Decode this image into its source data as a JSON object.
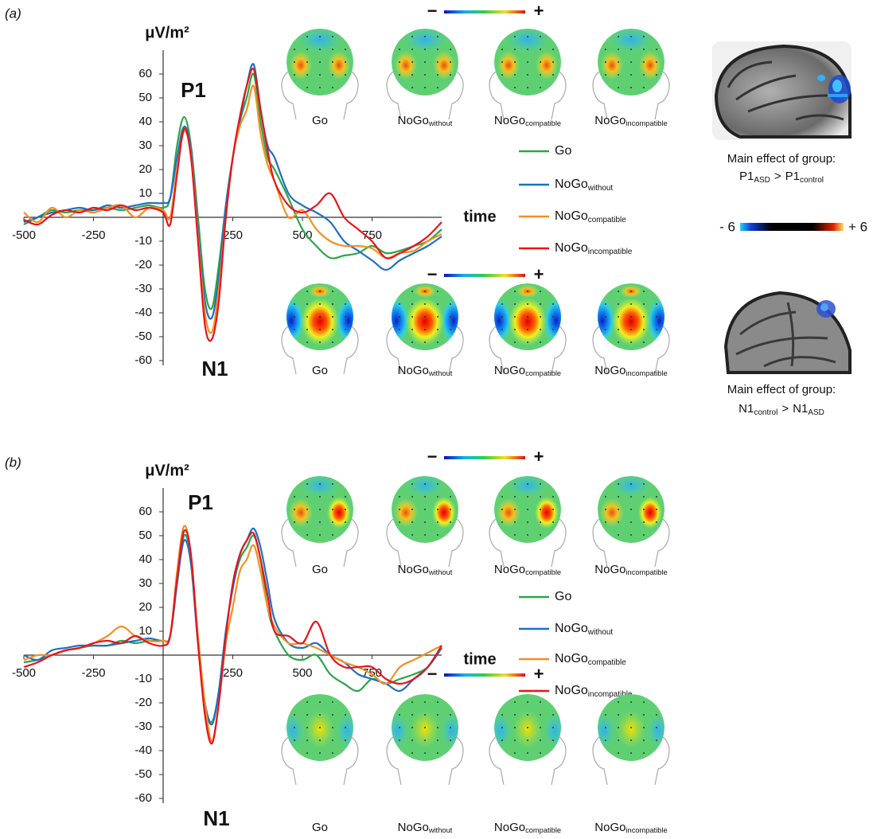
{
  "chart_data": [
    {
      "type": "line",
      "panel_label": "(a)",
      "y_label": "μV/m²",
      "x_label": "time",
      "annotations": [
        "P1",
        "N1"
      ],
      "x": [
        -500,
        -450,
        -400,
        -350,
        -300,
        -250,
        -200,
        -150,
        -100,
        -50,
        0,
        25,
        50,
        75,
        100,
        125,
        150,
        175,
        200,
        225,
        250,
        275,
        300,
        325,
        350,
        375,
        400,
        450,
        500,
        550,
        600,
        650,
        700,
        750,
        800,
        850,
        900,
        950,
        1000
      ],
      "series": [
        {
          "name": "Go",
          "color": "#2ca54a",
          "values": [
            -3,
            0,
            3,
            2,
            3,
            3,
            4,
            3,
            4,
            5,
            4,
            8,
            30,
            42,
            30,
            0,
            -30,
            -38,
            -20,
            5,
            25,
            40,
            50,
            60,
            40,
            25,
            20,
            8,
            -5,
            -12,
            -17,
            -16,
            -15,
            -12,
            -15,
            -14,
            -12,
            -10,
            -5
          ]
        },
        {
          "name": "NoGo",
          "subscript": "without",
          "color": "#1f6fc5",
          "values": [
            -2,
            0,
            2,
            3,
            4,
            3,
            5,
            4,
            5,
            6,
            6,
            8,
            25,
            38,
            28,
            -5,
            -35,
            -42,
            -25,
            5,
            25,
            40,
            55,
            64,
            45,
            30,
            25,
            10,
            5,
            2,
            -2,
            -10,
            -14,
            -18,
            -22,
            -18,
            -15,
            -12,
            -8
          ]
        },
        {
          "name": "NoGo",
          "subscript": "compatible",
          "color": "#f39020",
          "values": [
            2,
            -2,
            4,
            0,
            3,
            2,
            4,
            5,
            0,
            4,
            3,
            0,
            20,
            36,
            26,
            -8,
            -40,
            -48,
            -30,
            0,
            25,
            38,
            45,
            55,
            35,
            22,
            15,
            0,
            3,
            -5,
            -10,
            -12,
            -12,
            -13,
            -17,
            -15,
            -14,
            -10,
            -7
          ]
        },
        {
          "name": "NoGo",
          "subscript": "incompatible",
          "color": "#e8141b",
          "values": [
            -1,
            -3,
            1,
            3,
            2,
            4,
            3,
            5,
            3,
            4,
            2,
            -3,
            18,
            37,
            25,
            -10,
            -45,
            -51,
            -35,
            0,
            25,
            42,
            55,
            62,
            45,
            28,
            15,
            5,
            2,
            5,
            10,
            0,
            -5,
            -10,
            -17,
            -15,
            -12,
            -8,
            -2
          ]
        }
      ],
      "xlim": [
        -500,
        1000
      ],
      "ylim": [
        -62,
        70
      ],
      "xticks": [
        -500,
        -250,
        250,
        500,
        750
      ],
      "yticks": [
        60,
        50,
        40,
        30,
        20,
        10,
        -10,
        -20,
        -30,
        -40,
        -50,
        -60
      ],
      "topomaps": [
        {
          "colorbar": [
            "−",
            "+"
          ],
          "labels": [
            {
              "name": "Go"
            },
            {
              "name": "NoGo",
              "subscript": "without"
            },
            {
              "name": "NoGo",
              "subscript": "compatible"
            },
            {
              "name": "NoGo",
              "subscript": "incompatible"
            }
          ]
        },
        {
          "colorbar": [
            "−",
            "+"
          ],
          "labels": [
            {
              "name": "Go"
            },
            {
              "name": "NoGo",
              "subscript": "without"
            },
            {
              "name": "NoGo",
              "subscript": "compatible"
            },
            {
              "name": "NoGo",
              "subscript": "incompatible"
            }
          ]
        }
      ]
    },
    {
      "type": "line",
      "panel_label": "(b)",
      "y_label": "μV/m²",
      "x_label": "time",
      "annotations": [
        "P1",
        "N1"
      ],
      "x": [
        -500,
        -450,
        -400,
        -350,
        -300,
        -250,
        -200,
        -150,
        -100,
        -50,
        0,
        25,
        50,
        75,
        100,
        125,
        150,
        175,
        200,
        225,
        250,
        275,
        300,
        325,
        350,
        375,
        400,
        450,
        500,
        550,
        600,
        650,
        700,
        750,
        800,
        850,
        900,
        950,
        1000
      ],
      "series": [
        {
          "name": "Go",
          "color": "#2ca54a",
          "values": [
            -3,
            -2,
            0,
            2,
            3,
            4,
            4,
            6,
            5,
            6,
            6,
            8,
            30,
            50,
            40,
            5,
            -20,
            -28,
            -15,
            10,
            28,
            40,
            45,
            50,
            40,
            20,
            10,
            0,
            -2,
            0,
            -8,
            -12,
            -15,
            -10,
            -12,
            -10,
            -8,
            -5,
            3
          ]
        },
        {
          "name": "NoGo",
          "subscript": "without",
          "color": "#1f6fc5",
          "values": [
            0,
            -2,
            2,
            3,
            4,
            4,
            4,
            5,
            6,
            7,
            6,
            8,
            30,
            48,
            38,
            5,
            -20,
            -29,
            -15,
            10,
            28,
            42,
            48,
            53,
            45,
            30,
            15,
            5,
            3,
            5,
            0,
            -3,
            -8,
            -10,
            -12,
            -15,
            -10,
            -5,
            3
          ]
        },
        {
          "name": "NoGo",
          "subscript": "compatible",
          "color": "#f39020",
          "values": [
            -2,
            0,
            0,
            2,
            3,
            5,
            8,
            12,
            8,
            6,
            6,
            8,
            35,
            54,
            42,
            8,
            -20,
            -36,
            -20,
            5,
            20,
            35,
            40,
            46,
            35,
            20,
            12,
            5,
            5,
            3,
            0,
            -3,
            -5,
            -8,
            -12,
            -5,
            -2,
            1,
            4
          ]
        },
        {
          "name": "NoGo",
          "subscript": "incompatible",
          "color": "#e8141b",
          "values": [
            -5,
            -3,
            0,
            2,
            3,
            5,
            6,
            5,
            8,
            5,
            4,
            8,
            32,
            52,
            42,
            5,
            -25,
            -37,
            -20,
            8,
            30,
            42,
            48,
            51,
            40,
            25,
            10,
            8,
            5,
            14,
            0,
            -5,
            -5,
            -5,
            -10,
            -12,
            -10,
            -5,
            4
          ]
        }
      ],
      "xlim": [
        -500,
        1000
      ],
      "ylim": [
        -62,
        70
      ],
      "xticks": [
        -500,
        -250,
        250,
        500,
        750
      ],
      "yticks": [
        60,
        50,
        40,
        30,
        20,
        10,
        -10,
        -20,
        -30,
        -40,
        -50,
        -60
      ],
      "topomaps": [
        {
          "colorbar": [
            "−",
            "+"
          ],
          "labels": [
            {
              "name": "Go"
            },
            {
              "name": "NoGo",
              "subscript": "without"
            },
            {
              "name": "NoGo",
              "subscript": "compatible"
            },
            {
              "name": "NoGo",
              "subscript": "incompatible"
            }
          ]
        },
        {
          "colorbar": [
            "−",
            "+"
          ],
          "labels": [
            {
              "name": "Go"
            },
            {
              "name": "NoGo",
              "subscript": "without"
            },
            {
              "name": "NoGo",
              "subscript": "compatible"
            },
            {
              "name": "NoGo",
              "subscript": "incompatible"
            }
          ]
        }
      ]
    }
  ],
  "brain_panel": {
    "effects": [
      {
        "title": "Main effect of group:",
        "relation": ">",
        "terms": [
          {
            "name": "P1",
            "subscript": "ASD"
          },
          {
            "name": "P1",
            "subscript": "control"
          }
        ]
      },
      {
        "title": "Main effect of group:",
        "relation": ">",
        "terms": [
          {
            "name": "N1",
            "subscript": "control"
          },
          {
            "name": "N1",
            "subscript": "ASD"
          }
        ]
      }
    ],
    "colorbar": {
      "low": "- 6",
      "high": "+ 6"
    }
  }
}
